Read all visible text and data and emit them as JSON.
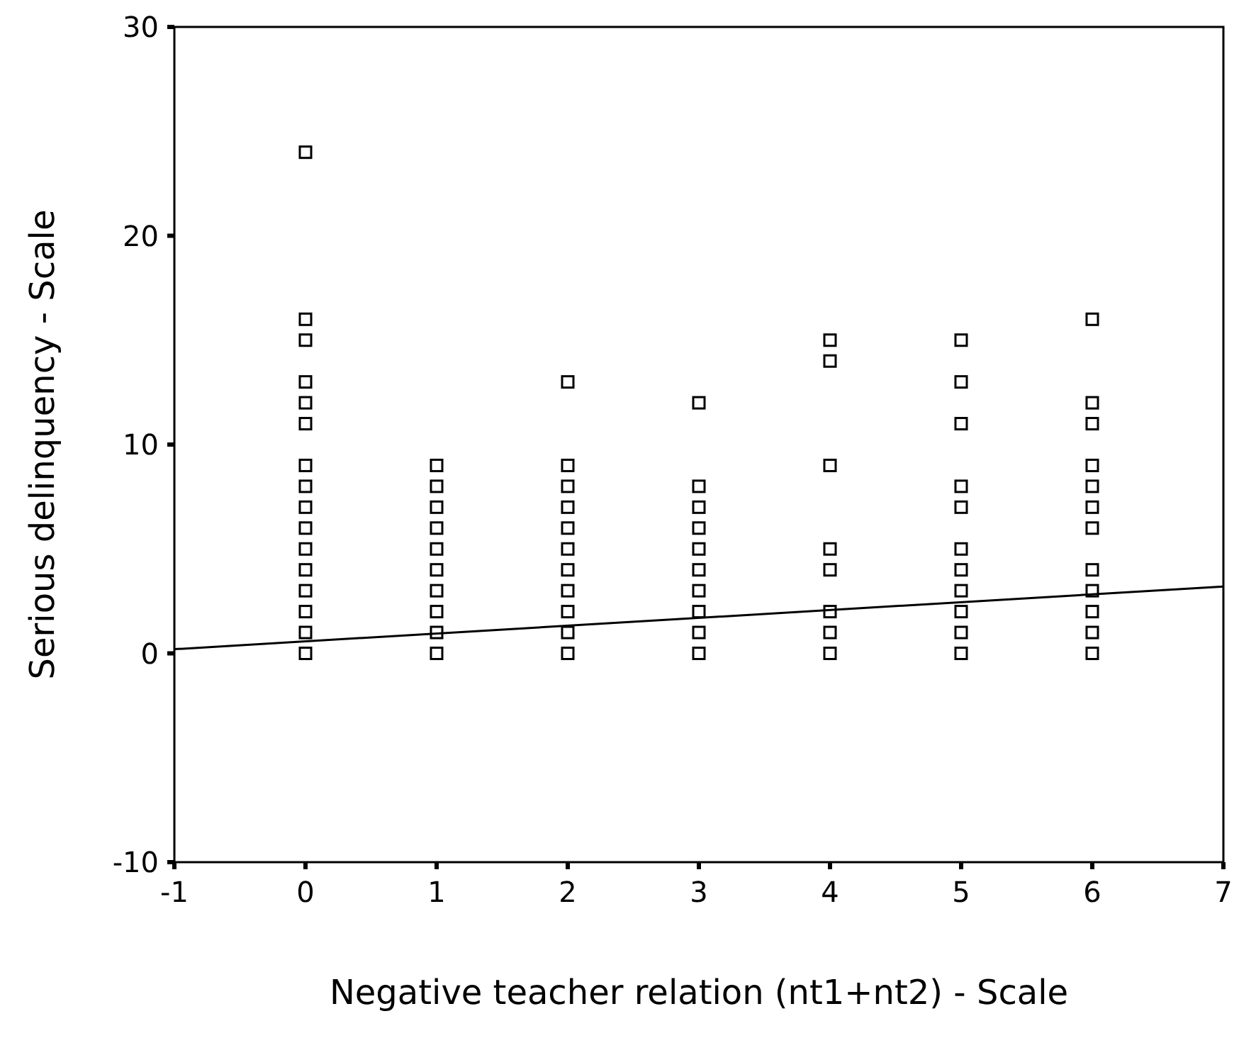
{
  "chart_data": {
    "type": "scatter",
    "xlabel": "Negative teacher relation (nt1+nt2) - Scale",
    "ylabel": "Serious delinquency - Scale",
    "xlim": [
      -1,
      7
    ],
    "ylim": [
      -10,
      30
    ],
    "xticks": [
      -1,
      0,
      1,
      2,
      3,
      4,
      5,
      6,
      7
    ],
    "yticks": [
      -10,
      0,
      10,
      20,
      30
    ],
    "grid": false,
    "marker": "square",
    "series": [
      {
        "color": "#000000",
        "x": [
          0,
          0,
          0,
          0,
          0,
          0,
          0,
          0,
          0,
          0,
          0,
          0,
          0,
          0,
          0,
          0,
          1,
          1,
          1,
          1,
          1,
          1,
          1,
          1,
          1,
          1,
          2,
          2,
          2,
          2,
          2,
          2,
          2,
          2,
          2,
          2,
          2,
          3,
          3,
          3,
          3,
          3,
          3,
          3,
          3,
          3,
          3,
          4,
          4,
          4,
          4,
          4,
          4,
          4,
          4,
          5,
          5,
          5,
          5,
          5,
          5,
          5,
          5,
          5,
          5,
          5,
          6,
          6,
          6,
          6,
          6,
          6,
          6,
          6,
          6,
          6,
          6,
          6
        ],
        "values": [
          24,
          16,
          15,
          13,
          12,
          11,
          9,
          8,
          7,
          6,
          5,
          4,
          3,
          2,
          1,
          0,
          9,
          8,
          7,
          6,
          5,
          4,
          3,
          2,
          1,
          0,
          13,
          9,
          8,
          7,
          6,
          5,
          4,
          3,
          2,
          1,
          0,
          12,
          8,
          7,
          6,
          5,
          4,
          3,
          2,
          1,
          0,
          15,
          14,
          9,
          5,
          4,
          2,
          1,
          0,
          15,
          13,
          11,
          8,
          7,
          5,
          4,
          3,
          2,
          1,
          0,
          16,
          12,
          11,
          9,
          8,
          7,
          6,
          4,
          3,
          2,
          1,
          0
        ]
      },
      {
        "type": "line",
        "color": "#000000",
        "x": [
          -1,
          7
        ],
        "values": [
          0.2,
          3.2
        ],
        "marker": "none",
        "line_style": "solid"
      }
    ]
  }
}
